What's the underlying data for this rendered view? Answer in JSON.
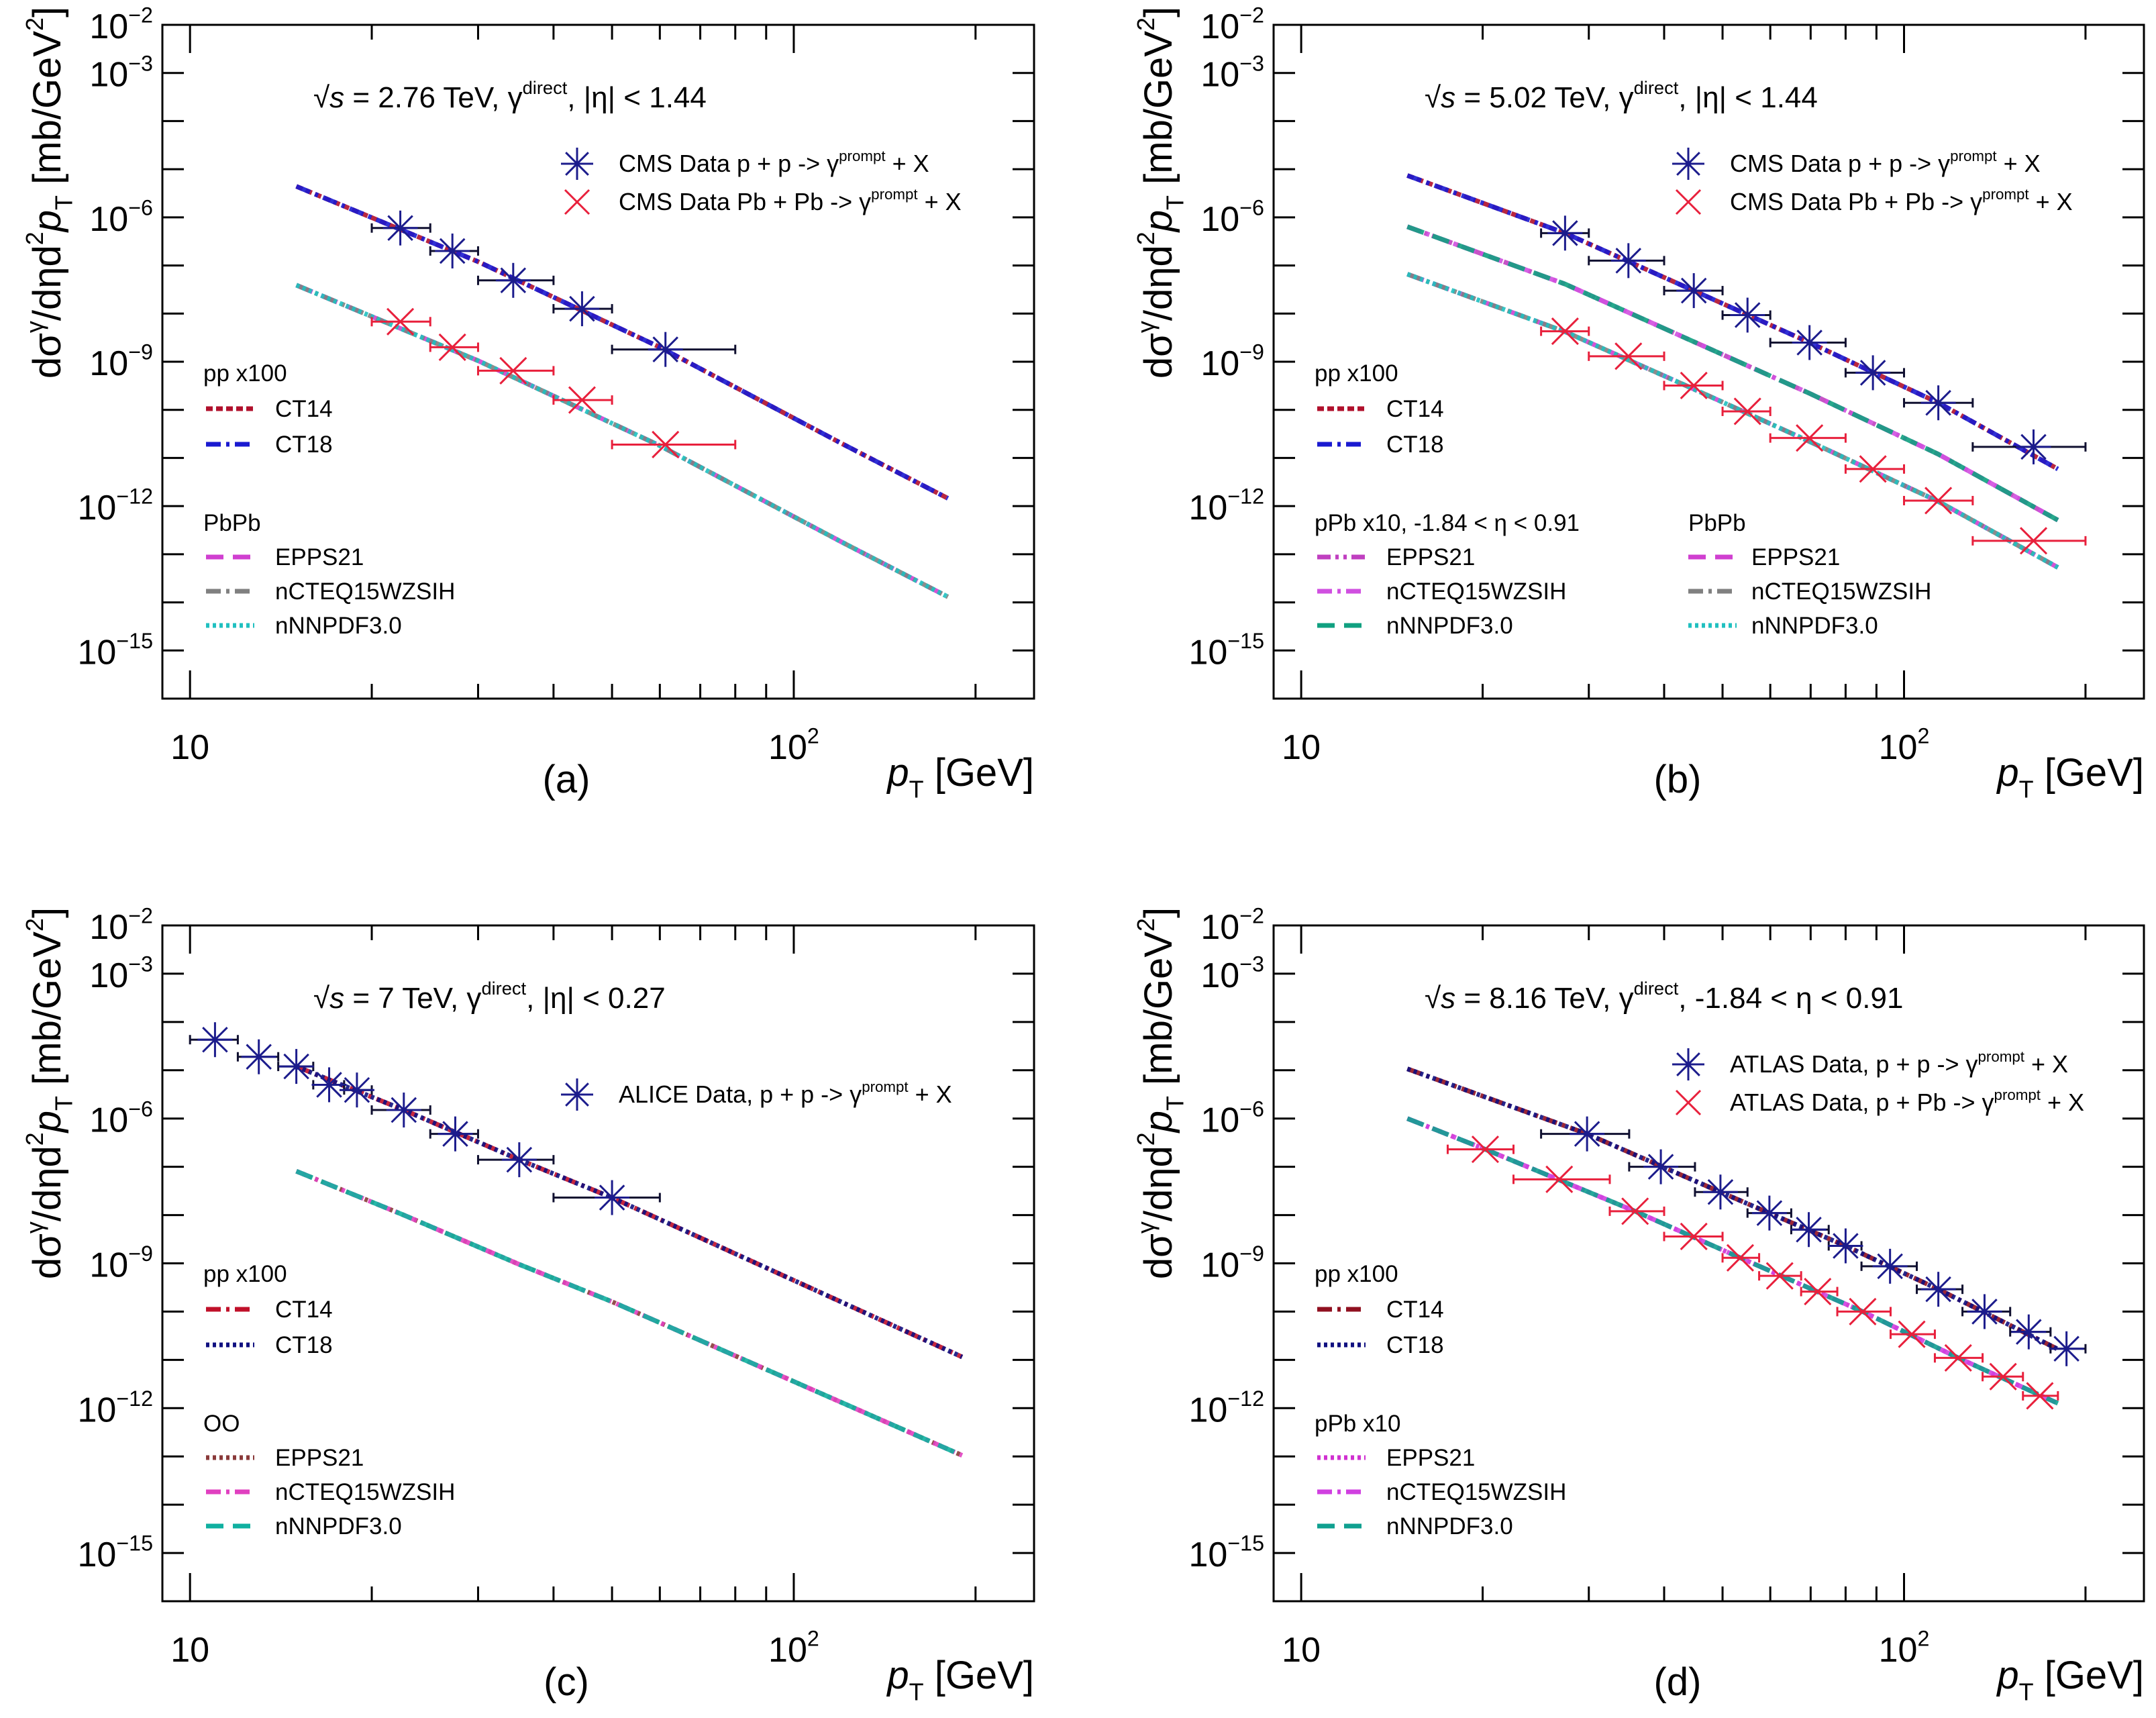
{
  "chart_data": {
    "type": "scatter",
    "x_scale": "log",
    "y_scale": "log",
    "xlim": [
      9,
      250
    ],
    "ylim": [
      1e-16,
      0.01
    ],
    "x_tick_labels": [
      {
        "base": "10",
        "exp": ""
      },
      {
        "base": "10",
        "exp": "2"
      }
    ],
    "x_tick_values": [
      10,
      100
    ],
    "y_tick_exponents": [
      -2,
      -3,
      -6,
      -9,
      -12,
      -15
    ],
    "xlabel_parts": [
      [
        "p",
        "it"
      ],
      [
        "T",
        "sub"
      ],
      [
        " [GeV]",
        ""
      ]
    ],
    "ylabel_parts": [
      [
        "dσ",
        ""
      ],
      [
        "γ",
        "sup"
      ],
      [
        "/dηd",
        ""
      ],
      [
        "2",
        "sup"
      ],
      [
        "p",
        "it"
      ],
      [
        "T",
        "sub"
      ],
      [
        " [mb/GeV",
        ""
      ],
      [
        "2",
        "sup"
      ],
      [
        "]",
        ""
      ]
    ],
    "panels": [
      {
        "id": "a",
        "label": "(a)",
        "annotation": [
          [
            "√",
            ""
          ],
          [
            "s",
            "it"
          ],
          [
            " = 2.76 TeV, γ",
            ""
          ],
          [
            "direct",
            "sup"
          ],
          [
            ", |η| < 1.44",
            ""
          ]
        ],
        "data_series": [
          {
            "name_parts": [
              [
                "CMS Data p + p -> γ",
                ""
              ],
              [
                "prompt",
                "sup"
              ],
              [
                "  + X",
                ""
              ]
            ],
            "marker": "star",
            "color": "#1c1c8c",
            "points": [
              [
                22.3,
                6e-07,
                20,
                25
              ],
              [
                27.2,
                2e-07,
                25,
                30
              ],
              [
                34.3,
                4.9e-08,
                30,
                40
              ],
              [
                44.6,
                1.26e-08,
                40,
                50
              ],
              [
                61.3,
                1.8e-09,
                50,
                80
              ]
            ]
          },
          {
            "name_parts": [
              [
                "CMS Data Pb + Pb -> γ",
                ""
              ],
              [
                "prompt",
                "sup"
              ],
              [
                "  + X",
                ""
              ]
            ],
            "marker": "cross",
            "color": "#e8203c",
            "points": [
              [
                22.3,
                6.8e-09,
                20,
                25
              ],
              [
                27.2,
                2e-09,
                25,
                30
              ],
              [
                34.3,
                6.5e-10,
                30,
                40
              ],
              [
                44.6,
                1.6e-10,
                40,
                50
              ],
              [
                61.3,
                1.9e-11,
                50,
                80
              ]
            ]
          }
        ],
        "theory": [
          {
            "group": "pp x100",
            "x": [
              15,
              30,
              60,
              120,
              180
            ],
            "y": [
              4.4e-06,
              1.2e-07,
              2e-09,
              2e-11,
              1.45e-12
            ],
            "models": [
              {
                "name": "CT14",
                "style": "dense",
                "color": "#b0102c"
              },
              {
                "name": "CT18",
                "style": "dash-dot",
                "color": "#1a1ad0"
              }
            ]
          },
          {
            "group": "PbPb",
            "x": [
              15,
              30,
              60,
              120,
              180
            ],
            "y": [
              3.9e-08,
              1.05e-09,
              1.8e-11,
              1.8e-13,
              1.3e-14
            ],
            "models": [
              {
                "name": "EPPS21",
                "style": "dashed",
                "color": "#d040d0"
              },
              {
                "name": "nCTEQ15WZSIH",
                "style": "dash-dot",
                "color": "#808080"
              },
              {
                "name": "nNNPDF3.0",
                "style": "dotted",
                "color": "#20c0c0"
              }
            ]
          }
        ]
      },
      {
        "id": "b",
        "label": "(b)",
        "annotation": [
          [
            "√",
            ""
          ],
          [
            "s",
            "it"
          ],
          [
            " = 5.02 TeV, γ",
            ""
          ],
          [
            "direct",
            "sup"
          ],
          [
            ", |η| < 1.44",
            ""
          ]
        ],
        "data_series": [
          {
            "name_parts": [
              [
                "CMS Data p + p -> γ",
                ""
              ],
              [
                "prompt",
                "sup"
              ],
              [
                "  + X",
                ""
              ]
            ],
            "marker": "star",
            "color": "#1c1c8c",
            "points": [
              [
                27.4,
                4.7e-07,
                25,
                30
              ],
              [
                34.9,
                1.26e-07,
                30,
                40
              ],
              [
                44.8,
                3e-08,
                40,
                50
              ],
              [
                55,
                9.3e-09,
                50,
                60
              ],
              [
                69.7,
                2.5e-09,
                60,
                80
              ],
              [
                88.8,
                5.9e-10,
                80,
                100
              ],
              [
                114,
                1.4e-10,
                100,
                130
              ],
              [
                164,
                1.7e-11,
                130,
                200
              ]
            ]
          },
          {
            "name_parts": [
              [
                "CMS Data Pb + Pb -> γ",
                ""
              ],
              [
                "prompt",
                "sup"
              ],
              [
                "  + X",
                ""
              ]
            ],
            "marker": "cross",
            "color": "#e8203c",
            "points": [
              [
                27.4,
                4.3e-09,
                25,
                30
              ],
              [
                34.9,
                1.3e-09,
                30,
                40
              ],
              [
                44.8,
                3.2e-10,
                40,
                50
              ],
              [
                55,
                9.3e-11,
                50,
                60
              ],
              [
                69.7,
                2.6e-11,
                60,
                80
              ],
              [
                88.8,
                5.9e-12,
                80,
                100
              ],
              [
                114,
                1.3e-12,
                100,
                130
              ],
              [
                164,
                1.9e-13,
                130,
                200
              ]
            ]
          }
        ],
        "theory": [
          {
            "group": "pp x100",
            "x": [
              15,
              27.4,
              44.8,
              69.7,
              114,
              180
            ],
            "y": [
              7.4e-06,
              4.7e-07,
              3e-08,
              2.5e-09,
              1.4e-10,
              5.9e-12
            ],
            "models": [
              {
                "name": "CT14",
                "style": "dense",
                "color": "#b0102c"
              },
              {
                "name": "CT18",
                "style": "dash-dot",
                "color": "#1a1ad0"
              }
            ]
          },
          {
            "group": "pPb x10, -1.84 < η < 0.91",
            "x": [
              15,
              27.4,
              44.8,
              69.7,
              114,
              180
            ],
            "y": [
              6.4e-07,
              4.1e-08,
              2.6e-09,
              2.2e-10,
              1.2e-11,
              5.1e-13
            ],
            "models": [
              {
                "name": "EPPS21",
                "style": "dash-dot-dot",
                "color": "#c040c0"
              },
              {
                "name": "nCTEQ15WZSIH",
                "style": "dash-dot",
                "color": "#d050e0"
              },
              {
                "name": "nNNPDF3.0",
                "style": "dashed",
                "color": "#10a080"
              }
            ]
          },
          {
            "group": "PbPb",
            "x": [
              15,
              27.4,
              44.8,
              69.7,
              114,
              180
            ],
            "y": [
              6.6e-08,
              4.2e-09,
              2.7e-10,
              2.2e-11,
              1.25e-12,
              5.3e-14
            ],
            "models": [
              {
                "name": "EPPS21",
                "style": "dashed",
                "color": "#d040d0"
              },
              {
                "name": "nCTEQ15WZSIH",
                "style": "dash-dot",
                "color": "#808080"
              },
              {
                "name": "nNNPDF3.0",
                "style": "dotted",
                "color": "#20c0c0"
              }
            ]
          }
        ]
      },
      {
        "id": "c",
        "label": "(c)",
        "annotation": [
          [
            "√",
            ""
          ],
          [
            "s",
            "it"
          ],
          [
            " = 7 TeV, γ",
            ""
          ],
          [
            "direct",
            "sup"
          ],
          [
            ", |η| < 0.27",
            ""
          ]
        ],
        "data_series": [
          {
            "name_parts": [
              [
                "ALICE Data, p + p -> γ",
                ""
              ],
              [
                "prompt",
                "sup"
              ],
              [
                "  + X",
                ""
              ]
            ],
            "marker": "star",
            "color": "#1c1c8c",
            "points": [
              [
                11,
                4.3e-05,
                10,
                12
              ],
              [
                13,
                1.9e-05,
                12,
                14
              ],
              [
                15,
                1.2e-05,
                14,
                16
              ],
              [
                17,
                5e-06,
                16,
                18
              ],
              [
                18.9,
                3.9e-06,
                18,
                20
              ],
              [
                22.6,
                1.5e-06,
                20,
                25
              ],
              [
                27.5,
                4.8e-07,
                25,
                30
              ],
              [
                35.1,
                1.4e-07,
                30,
                40
              ],
              [
                50,
                2.3e-08,
                40,
                60
              ]
            ]
          }
        ],
        "theory": [
          {
            "group": "pp x100",
            "x": [
              15,
              22.6,
              35.1,
              50,
              190
            ],
            "y": [
              1.2e-05,
              1.5e-06,
              1.4e-07,
              2.3e-08,
              1.15e-11
            ],
            "models": [
              {
                "name": "CT14",
                "style": "dash-dot",
                "color": "#c0102a"
              },
              {
                "name": "CT18",
                "style": "dotted",
                "color": "#101080"
              }
            ]
          },
          {
            "group": "OO",
            "x": [
              15,
              22.6,
              35.1,
              50,
              190
            ],
            "y": [
              8.1e-08,
              1e-08,
              9.5e-10,
              1.6e-10,
              1.05e-13
            ],
            "models": [
              {
                "name": "EPPS21",
                "style": "dotted",
                "color": "#8a3a3a"
              },
              {
                "name": "nCTEQ15WZSIH",
                "style": "dash-dot",
                "color": "#e040c0"
              },
              {
                "name": "nNNPDF3.0",
                "style": "dashed",
                "color": "#10b0a0"
              }
            ]
          }
        ]
      },
      {
        "id": "d",
        "label": "(d)",
        "annotation": [
          [
            "√",
            ""
          ],
          [
            "s",
            "it"
          ],
          [
            " = 8.16 TeV, γ",
            ""
          ],
          [
            "direct",
            "sup"
          ],
          [
            ", -1.84 < η < 0.91",
            ""
          ]
        ],
        "data_series": [
          {
            "name_parts": [
              [
                "ATLAS Data, p + p -> γ",
                ""
              ],
              [
                "prompt",
                "sup"
              ],
              [
                "  + X",
                ""
              ]
            ],
            "marker": "star",
            "color": "#1c1c8c",
            "points": [
              [
                29.8,
                4.8e-07,
                25,
                35
              ],
              [
                39.5,
                1e-07,
                35,
                45
              ],
              [
                49.6,
                3e-08,
                45,
                55
              ],
              [
                59.8,
                1.1e-08,
                55,
                65
              ],
              [
                69.5,
                5e-09,
                65,
                75
              ],
              [
                80,
                2.3e-09,
                75,
                85
              ],
              [
                94.8,
                8.7e-10,
                85,
                105
              ],
              [
                114,
                2.9e-10,
                105,
                125
              ],
              [
                136,
                1e-10,
                125,
                150
              ],
              [
                161,
                3.8e-11,
                150,
                175
              ],
              [
                186,
                1.7e-11,
                175,
                200
              ]
            ]
          },
          {
            "name_parts": [
              [
                "ATLAS Data, p + Pb -> γ",
                ""
              ],
              [
                "prompt",
                "sup"
              ],
              [
                "  + X",
                ""
              ]
            ],
            "marker": "cross",
            "color": "#e8203c",
            "points": [
              [
                20.2,
                2.3e-07,
                17.5,
                22.5
              ],
              [
                26.8,
                5.5e-08,
                22.5,
                32.5
              ],
              [
                35.8,
                1.2e-08,
                32.5,
                40
              ],
              [
                44.8,
                3.6e-09,
                40,
                50
              ],
              [
                53.5,
                1.3e-09,
                50,
                57.5
              ],
              [
                62.2,
                5.5e-10,
                57.5,
                67.5
              ],
              [
                71.9,
                2.6e-10,
                67.5,
                77.5
              ],
              [
                85.4,
                1e-10,
                77.5,
                95
              ],
              [
                103,
                3.4e-11,
                95,
                112.5
              ],
              [
                123,
                1.1e-11,
                112.5,
                135
              ],
              [
                146,
                4.5e-12,
                135,
                157.5
              ],
              [
                168,
                1.8e-12,
                157.5,
                180
              ]
            ]
          }
        ],
        "theory": [
          {
            "group": "pp x100",
            "x": [
              15,
              29.8,
              49.6,
              80,
              114,
              180
            ],
            "y": [
              1.07e-05,
              4.8e-07,
              3e-08,
              2.3e-09,
              2.9e-10,
              1.66e-11
            ],
            "models": [
              {
                "name": "CT14",
                "style": "dash-dot",
                "color": "#901020"
              },
              {
                "name": "CT18",
                "style": "dotted",
                "color": "#101080"
              }
            ]
          },
          {
            "group": "pPb x10",
            "x": [
              15,
              20.2,
              35.8,
              53.5,
              85.4,
              123,
              180
            ],
            "y": [
              1e-06,
              2.3e-07,
              1.2e-08,
              1.3e-09,
              1e-10,
              1.1e-11,
              1.26e-12
            ],
            "models": [
              {
                "name": "EPPS21",
                "style": "dotted",
                "color": "#d030d0"
              },
              {
                "name": "nCTEQ15WZSIH",
                "style": "dash-dot",
                "color": "#d040e0"
              },
              {
                "name": "nNNPDF3.0",
                "style": "dashed",
                "color": "#10a090"
              }
            ]
          }
        ]
      }
    ]
  }
}
